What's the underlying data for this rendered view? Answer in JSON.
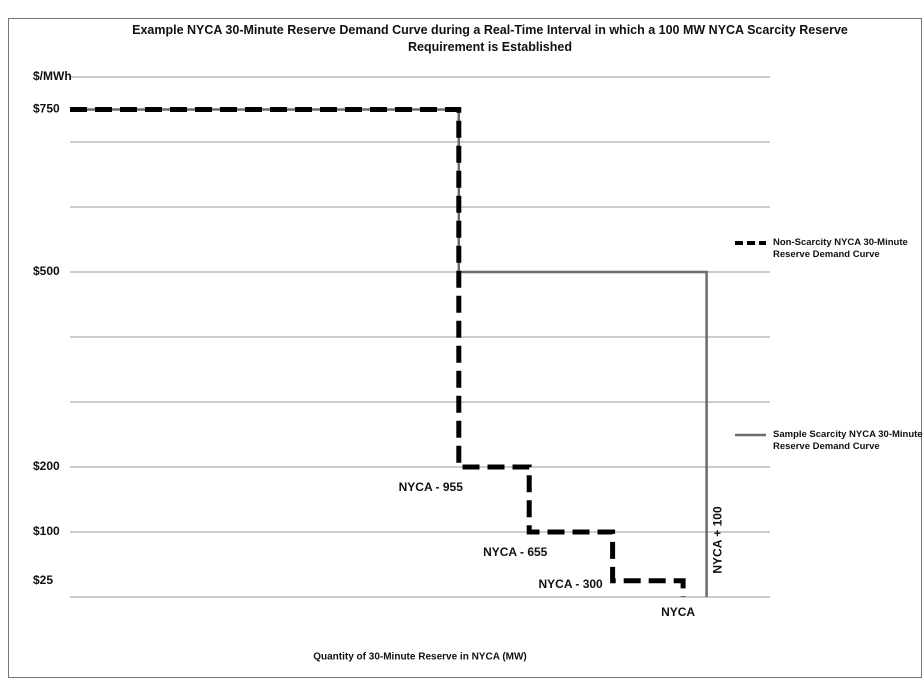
{
  "chart_data": {
    "type": "line",
    "title": "Example NYCA 30-Minute Reserve Demand Curve during a Real-Time Interval in which a 100 MW NYCA Scarcity Reserve Requirement is Established",
    "x_label": "Quantity of 30-Minute Reserve in NYCA (MW)",
    "xlim": [
      -2610,
      370
    ],
    "ylim": [
      0,
      800
    ],
    "yticks": [
      {
        "value": 25,
        "label": "$25"
      },
      {
        "value": 100,
        "label": "$100"
      },
      {
        "value": 200,
        "label": "$200"
      },
      {
        "value": 500,
        "label": "$500"
      },
      {
        "value": 750,
        "label": "$750"
      },
      {
        "value": 800,
        "label": "$/MWh"
      }
    ],
    "ygrid": [
      0,
      100,
      200,
      300,
      400,
      500,
      600,
      700,
      800
    ],
    "xticks": [
      {
        "value": -955,
        "label": "NYCA - 955"
      },
      {
        "value": -655,
        "label": "NYCA - 655"
      },
      {
        "value": -300,
        "label": "NYCA - 300"
      },
      {
        "value": 0,
        "label": "NYCA"
      },
      {
        "value": 100,
        "label": "NYCA + 100"
      }
    ],
    "grid": true,
    "legend": "right",
    "series": [
      {
        "name": "Non-Scarcity NYCA 30-Minute Reserve Demand Curve",
        "color": "#000000",
        "style": "dashed",
        "x": [
          -2610,
          -955,
          -955,
          -655,
          -655,
          -300,
          -300,
          0,
          0
        ],
        "values": [
          750,
          750,
          200,
          200,
          100,
          100,
          25,
          25,
          0
        ]
      },
      {
        "name": "Sample Scarcity NYCA 30-Minute Reserve Demand Curve",
        "color": "#6d6d6d",
        "style": "solid",
        "x": [
          -2610,
          -955,
          -955,
          100,
          100
        ],
        "values": [
          750,
          750,
          500,
          500,
          0
        ]
      }
    ]
  }
}
